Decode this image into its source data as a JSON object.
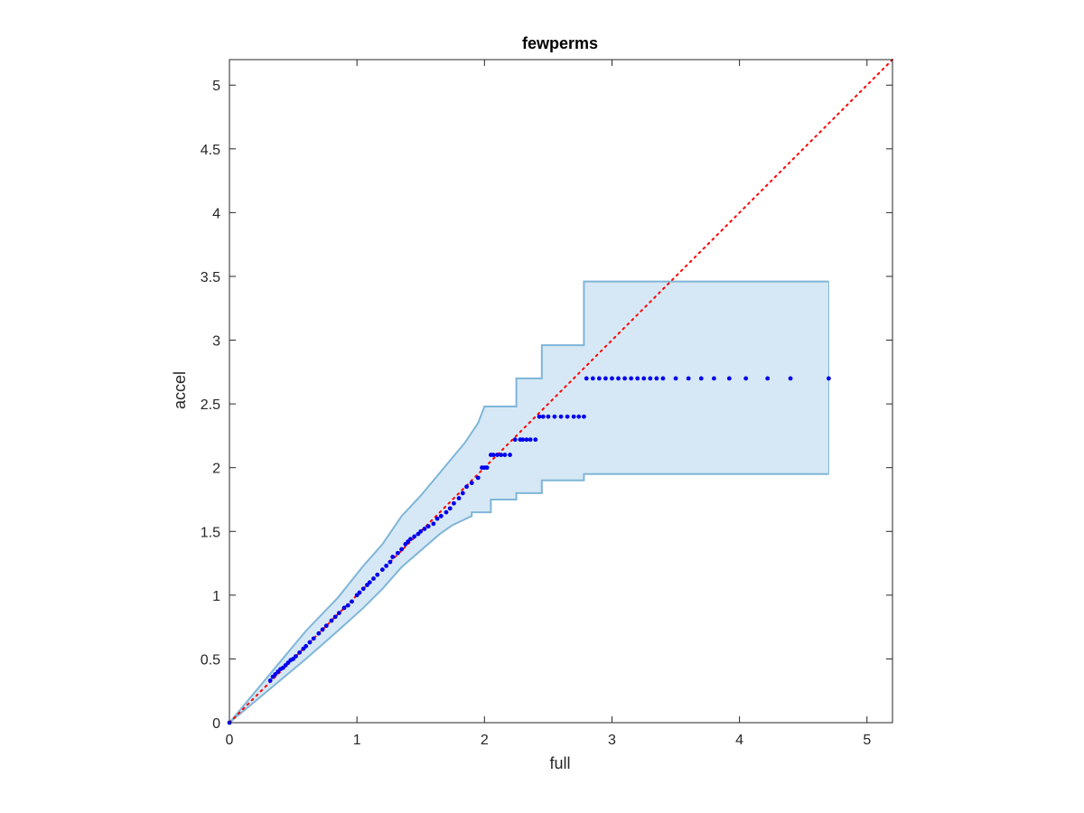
{
  "chart_data": {
    "type": "scatter",
    "title": "fewperms",
    "xlabel": "full",
    "ylabel": "accel",
    "xlim": [
      0,
      5.2
    ],
    "ylim": [
      0,
      5.2
    ],
    "xticks": [
      0,
      1,
      2,
      3,
      4,
      5
    ],
    "xtick_labels": [
      "0",
      "1",
      "2",
      "3",
      "4",
      "5"
    ],
    "yticks": [
      0,
      0.5,
      1,
      1.5,
      2,
      2.5,
      3,
      3.5,
      4,
      4.5,
      5
    ],
    "ytick_labels": [
      "0",
      "0.5",
      "1",
      "1.5",
      "2",
      "2.5",
      "3",
      "3.5",
      "4",
      "4.5",
      "5"
    ],
    "grid": false,
    "legend": "none",
    "colors": {
      "points": "#0000ee",
      "reference_line": "#ff0000",
      "band_fill": "#d6e8f5",
      "band_edge": "#7fb5d8",
      "axes": "#262626"
    },
    "reference_line": {
      "x": [
        0,
        5.2
      ],
      "y": [
        0,
        5.2
      ],
      "style": "dotted"
    },
    "confidence_band": {
      "upper": [
        [
          0,
          0
        ],
        [
          0.3,
          0.36
        ],
        [
          0.6,
          0.72
        ],
        [
          0.85,
          0.98
        ],
        [
          1.05,
          1.23
        ],
        [
          1.2,
          1.4
        ],
        [
          1.35,
          1.62
        ],
        [
          1.5,
          1.78
        ],
        [
          1.65,
          1.96
        ],
        [
          1.75,
          2.08
        ],
        [
          1.85,
          2.2
        ],
        [
          1.95,
          2.35
        ],
        [
          2.0,
          2.48
        ],
        [
          2.25,
          2.48
        ],
        [
          2.25,
          2.7
        ],
        [
          2.45,
          2.7
        ],
        [
          2.45,
          2.96
        ],
        [
          2.78,
          2.96
        ],
        [
          2.78,
          3.46
        ],
        [
          4.7,
          3.46
        ]
      ],
      "lower": [
        [
          0,
          0
        ],
        [
          0.3,
          0.25
        ],
        [
          0.6,
          0.5
        ],
        [
          0.85,
          0.72
        ],
        [
          1.05,
          0.9
        ],
        [
          1.2,
          1.05
        ],
        [
          1.35,
          1.22
        ],
        [
          1.5,
          1.35
        ],
        [
          1.65,
          1.48
        ],
        [
          1.75,
          1.55
        ],
        [
          1.9,
          1.62
        ],
        [
          1.9,
          1.65
        ],
        [
          2.05,
          1.65
        ],
        [
          2.05,
          1.75
        ],
        [
          2.25,
          1.75
        ],
        [
          2.25,
          1.8
        ],
        [
          2.45,
          1.8
        ],
        [
          2.45,
          1.9
        ],
        [
          2.78,
          1.9
        ],
        [
          2.78,
          1.95
        ],
        [
          4.7,
          1.95
        ]
      ]
    },
    "points": {
      "x": [
        0,
        0.32,
        0.34,
        0.36,
        0.38,
        0.4,
        0.42,
        0.44,
        0.46,
        0.48,
        0.5,
        0.52,
        0.55,
        0.58,
        0.6,
        0.63,
        0.66,
        0.7,
        0.73,
        0.76,
        0.8,
        0.83,
        0.86,
        0.9,
        0.93,
        0.96,
        1.0,
        1.02,
        1.05,
        1.08,
        1.1,
        1.13,
        1.16,
        1.2,
        1.23,
        1.26,
        1.28,
        1.32,
        1.35,
        1.38,
        1.4,
        1.42,
        1.45,
        1.48,
        1.5,
        1.53,
        1.56,
        1.6,
        1.63,
        1.66,
        1.7,
        1.73,
        1.76,
        1.8,
        1.83,
        1.86,
        1.9,
        1.95,
        1.98,
        2.0,
        2.02,
        2.05,
        2.07,
        2.1,
        2.13,
        2.16,
        2.2,
        2.24,
        2.28,
        2.3,
        2.33,
        2.36,
        2.4,
        2.43,
        2.46,
        2.5,
        2.55,
        2.6,
        2.65,
        2.7,
        2.74,
        2.78,
        2.8,
        2.85,
        2.9,
        2.95,
        3.0,
        3.05,
        3.1,
        3.15,
        3.2,
        3.25,
        3.3,
        3.35,
        3.4,
        3.5,
        3.6,
        3.7,
        3.8,
        3.92,
        4.05,
        4.22,
        4.4,
        4.7
      ],
      "y": [
        0,
        0.33,
        0.36,
        0.38,
        0.4,
        0.42,
        0.43,
        0.45,
        0.47,
        0.49,
        0.5,
        0.52,
        0.55,
        0.58,
        0.6,
        0.63,
        0.66,
        0.7,
        0.73,
        0.76,
        0.8,
        0.83,
        0.86,
        0.9,
        0.92,
        0.95,
        1.0,
        1.02,
        1.05,
        1.08,
        1.1,
        1.13,
        1.16,
        1.2,
        1.23,
        1.26,
        1.3,
        1.33,
        1.36,
        1.4,
        1.42,
        1.44,
        1.46,
        1.48,
        1.5,
        1.52,
        1.54,
        1.56,
        1.6,
        1.62,
        1.65,
        1.68,
        1.72,
        1.76,
        1.8,
        1.85,
        1.88,
        1.92,
        2.0,
        2.0,
        2.0,
        2.1,
        2.1,
        2.1,
        2.1,
        2.1,
        2.1,
        2.22,
        2.22,
        2.22,
        2.22,
        2.22,
        2.22,
        2.4,
        2.4,
        2.4,
        2.4,
        2.4,
        2.4,
        2.4,
        2.4,
        2.4,
        2.7,
        2.7,
        2.7,
        2.7,
        2.7,
        2.7,
        2.7,
        2.7,
        2.7,
        2.7,
        2.7,
        2.7,
        2.7,
        2.7,
        2.7,
        2.7,
        2.7,
        2.7,
        2.7,
        2.7,
        2.7,
        2.7
      ]
    }
  }
}
